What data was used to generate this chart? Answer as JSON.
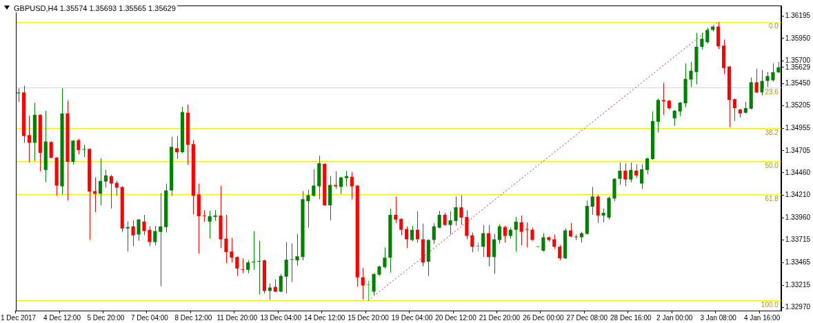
{
  "chart_data": {
    "type": "candlestick",
    "title": "GBPUSD,H4 1.35574 1.35693 1.35565 1.35629",
    "categories": [
      "1 Dec 2017",
      null,
      null,
      null,
      null,
      null,
      null,
      null,
      "4 Dec 12:00",
      null,
      null,
      null,
      null,
      null,
      null,
      null,
      "5 Dec 20:00",
      null,
      null,
      null,
      null,
      null,
      null,
      null,
      "7 Dec 04:00",
      null,
      null,
      null,
      null,
      null,
      null,
      null,
      "8 Dec 12:00",
      null,
      null,
      null,
      null,
      null,
      null,
      null,
      "11 Dec 20:00",
      null,
      null,
      null,
      null,
      null,
      null,
      null,
      "13 Dec 04:00",
      null,
      null,
      null,
      null,
      null,
      null,
      null,
      "14 Dec 12:00",
      null,
      null,
      null,
      null,
      null,
      null,
      null,
      "15 Dec 20:00",
      null,
      null,
      null,
      null,
      null,
      null,
      null,
      "19 Dec 04:00",
      null,
      null,
      null,
      null,
      null,
      null,
      null,
      "20 Dec 12:00",
      null,
      null,
      null,
      null,
      null,
      null,
      null,
      "21 Dec 20:00",
      null,
      null,
      null,
      null,
      null,
      null,
      null,
      "26 Dec 00:00",
      null,
      null,
      null,
      null,
      null,
      null,
      null,
      "27 Dec 08:00",
      null,
      null,
      null,
      null,
      null,
      null,
      null,
      "28 Dec 16:00",
      null,
      null,
      null,
      null,
      null,
      null,
      null,
      "2 Jan 00:00",
      null,
      null,
      null,
      null,
      null,
      null,
      null,
      "3 Jan 08:00",
      null,
      null,
      null,
      null,
      null,
      null,
      null,
      "4 Jan 16:00",
      null,
      null,
      null
    ],
    "ohlc": [
      [
        1.35342,
        1.35396,
        1.35245,
        1.35351
      ],
      [
        1.35351,
        1.35426,
        1.34793,
        1.34869
      ],
      [
        1.34877,
        1.35095,
        1.34575,
        1.34793
      ],
      [
        1.34793,
        1.35238,
        1.3459,
        1.35103
      ],
      [
        1.35103,
        1.35108,
        1.34477,
        1.34681
      ],
      [
        1.34492,
        1.35148,
        1.34356,
        1.34808
      ],
      [
        1.34801,
        1.34808,
        1.34621,
        1.34628
      ],
      [
        1.34628,
        1.34636,
        1.34205,
        1.34319
      ],
      [
        1.34311,
        1.35396,
        1.34221,
        1.35118
      ],
      [
        1.35118,
        1.3526,
        1.34153,
        1.34582
      ],
      [
        1.34582,
        1.34823,
        1.34552,
        1.34816
      ],
      [
        1.34823,
        1.34839,
        1.34666,
        1.34711
      ],
      [
        1.34716,
        1.34771,
        1.34636,
        1.34722
      ],
      [
        1.34726,
        1.3473,
        1.33716,
        1.34251
      ],
      [
        1.34258,
        1.34409,
        1.34025,
        1.34228
      ],
      [
        1.34228,
        1.34621,
        1.341,
        1.34371
      ],
      [
        1.34364,
        1.34492,
        1.34296,
        1.34431
      ],
      [
        1.34424,
        1.34439,
        1.34063,
        1.34341
      ],
      [
        1.34349,
        1.34371,
        1.34205,
        1.34296
      ],
      [
        1.34304,
        1.34311,
        1.33806,
        1.33844
      ],
      [
        1.33844,
        1.33919,
        1.33588,
        1.33859
      ],
      [
        1.33867,
        1.33934,
        1.33648,
        1.33768
      ],
      [
        1.33776,
        1.33949,
        1.33708,
        1.33942
      ],
      [
        1.33919,
        1.33994,
        1.33768,
        1.33814
      ],
      [
        1.33829,
        1.33867,
        1.33648,
        1.33693
      ],
      [
        1.33693,
        1.33874,
        1.33656,
        1.33814
      ],
      [
        1.33806,
        1.34236,
        1.33204,
        1.33867
      ],
      [
        1.33859,
        1.34341,
        1.33799,
        1.34266
      ],
      [
        1.34266,
        1.34861,
        1.34205,
        1.34748
      ],
      [
        1.34733,
        1.34869,
        1.34613,
        1.34688
      ],
      [
        1.34688,
        1.35193,
        1.34681,
        1.35133
      ],
      [
        1.35126,
        1.35216,
        1.34552,
        1.34771
      ],
      [
        1.34778,
        1.34823,
        1.34002,
        1.34205
      ],
      [
        1.34221,
        1.34341,
        1.33565,
        1.33979
      ],
      [
        1.33987,
        1.34047,
        1.33919,
        1.33979
      ],
      [
        1.33919,
        1.3404,
        1.33731,
        1.33979
      ],
      [
        1.33972,
        1.34047,
        1.33927,
        1.33987
      ],
      [
        1.33987,
        1.34319,
        1.33626,
        1.33723
      ],
      [
        1.33731,
        1.33994,
        1.3346,
        1.33581
      ],
      [
        1.33588,
        1.33739,
        1.33467,
        1.3352
      ],
      [
        1.33527,
        1.33535,
        1.33317,
        1.334
      ],
      [
        1.33392,
        1.33513,
        1.33347,
        1.33385
      ],
      [
        1.33385,
        1.3349,
        1.33347,
        1.33467
      ],
      [
        1.33467,
        1.33814,
        1.33385,
        1.33475
      ],
      [
        1.33475,
        1.33708,
        1.33113,
        1.33482
      ],
      [
        1.3349,
        1.33497,
        1.33121,
        1.33151
      ],
      [
        1.33151,
        1.33234,
        1.33053,
        1.33189
      ],
      [
        1.33196,
        1.33279,
        1.33136,
        1.33143
      ],
      [
        1.33143,
        1.33339,
        1.33136,
        1.33317
      ],
      [
        1.33309,
        1.33693,
        1.33121,
        1.33497
      ],
      [
        1.33496,
        1.33678,
        1.33249,
        1.33499
      ],
      [
        1.3349,
        1.33784,
        1.3343,
        1.33535
      ],
      [
        1.33527,
        1.34258,
        1.3349,
        1.34168
      ],
      [
        1.34146,
        1.34273,
        1.33852,
        1.34213
      ],
      [
        1.34205,
        1.345,
        1.34198,
        1.34319
      ],
      [
        1.34311,
        1.34651,
        1.34168,
        1.34567
      ],
      [
        1.3456,
        1.34567,
        1.34093,
        1.341
      ],
      [
        1.341,
        1.34424,
        1.33934,
        1.34326
      ],
      [
        1.34326,
        1.34477,
        1.34281,
        1.34311
      ],
      [
        1.34304,
        1.34416,
        1.34228,
        1.34409
      ],
      [
        1.34401,
        1.34485,
        1.34311,
        1.34424
      ],
      [
        1.34416,
        1.34469,
        1.34168,
        1.34311
      ],
      [
        1.34319,
        1.34326,
        1.33196,
        1.33302
      ],
      [
        1.33302,
        1.33407,
        1.3306,
        1.33211
      ],
      [
        1.33216,
        1.33264,
        1.33045,
        1.33219
      ],
      [
        1.33143,
        1.33347,
        1.33106,
        1.33339
      ],
      [
        1.33332,
        1.3343,
        1.33317,
        1.33422
      ],
      [
        1.33415,
        1.33633,
        1.334,
        1.3352
      ],
      [
        1.3352,
        1.34063,
        1.33355,
        1.33994
      ],
      [
        1.33994,
        1.34198,
        1.33904,
        1.33942
      ],
      [
        1.33949,
        1.33957,
        1.33768,
        1.33829
      ],
      [
        1.33837,
        1.33867,
        1.33626,
        1.33723
      ],
      [
        1.33716,
        1.33874,
        1.33701,
        1.33829
      ],
      [
        1.33829,
        1.34032,
        1.33686,
        1.33723
      ],
      [
        1.33723,
        1.33897,
        1.33422,
        1.33467
      ],
      [
        1.33475,
        1.33723,
        1.33317,
        1.33716
      ],
      [
        1.33716,
        1.33904,
        1.33671,
        1.33867
      ],
      [
        1.33852,
        1.3404,
        1.33844,
        1.33994
      ],
      [
        1.33994,
        1.34017,
        1.33874,
        1.33882
      ],
      [
        1.33882,
        1.34032,
        1.33776,
        1.33934
      ],
      [
        1.33927,
        1.34198,
        1.33874,
        1.34078
      ],
      [
        1.34078,
        1.34213,
        1.33882,
        1.33964
      ],
      [
        1.33972,
        1.34047,
        1.33723,
        1.33761
      ],
      [
        1.33768,
        1.33799,
        1.33581,
        1.33641
      ],
      [
        1.33645,
        1.33686,
        1.33588,
        1.33647
      ],
      [
        1.33641,
        1.33882,
        1.33527,
        1.33791
      ],
      [
        1.33791,
        1.33882,
        1.33422,
        1.33527
      ],
      [
        1.33527,
        1.33784,
        1.33339,
        1.33723
      ],
      [
        1.33716,
        1.33889,
        1.33678,
        1.33867
      ],
      [
        1.33859,
        1.33874,
        1.33686,
        1.33761
      ],
      [
        1.33761,
        1.33852,
        1.33731,
        1.33829
      ],
      [
        1.33829,
        1.33972,
        1.33588,
        1.33919
      ],
      [
        1.33912,
        1.33987,
        1.33656,
        1.33806
      ],
      [
        1.33837,
        1.33912,
        1.33633,
        1.33829
      ],
      [
        1.33829,
        1.33852,
        1.33708,
        1.33716
      ],
      [
        1.33639,
        1.33648,
        1.33633,
        1.33641
      ],
      [
        1.33596,
        1.33791,
        1.33588,
        1.33746
      ],
      [
        1.33746,
        1.33754,
        1.33701,
        1.33716
      ],
      [
        1.33723,
        1.33776,
        1.33618,
        1.33641
      ],
      [
        1.33641,
        1.33663,
        1.3349,
        1.33513
      ],
      [
        1.33513,
        1.33844,
        1.33505,
        1.33822
      ],
      [
        1.33822,
        1.33904,
        1.33746,
        1.33754
      ],
      [
        1.33754,
        1.33776,
        1.33716,
        1.33746
      ],
      [
        1.33746,
        1.33806,
        1.33686,
        1.33791
      ],
      [
        1.33784,
        1.34153,
        1.33776,
        1.34093
      ],
      [
        1.34085,
        1.34304,
        1.33994,
        1.34198
      ],
      [
        1.34198,
        1.34213,
        1.33904,
        1.33987
      ],
      [
        1.33987,
        1.34063,
        1.33912,
        1.34017
      ],
      [
        1.33964,
        1.34198,
        1.33942,
        1.34183
      ],
      [
        1.34175,
        1.34401,
        1.34146,
        1.34394
      ],
      [
        1.34394,
        1.34575,
        1.34326,
        1.34485
      ],
      [
        1.34485,
        1.34567,
        1.34311,
        1.34386
      ],
      [
        1.34386,
        1.34575,
        1.34356,
        1.34492
      ],
      [
        1.34485,
        1.34552,
        1.34401,
        1.34431
      ],
      [
        1.34341,
        1.34552,
        1.34281,
        1.345
      ],
      [
        1.34492,
        1.34628,
        1.34446,
        1.34621
      ],
      [
        1.34613,
        1.35141,
        1.34605,
        1.35035
      ],
      [
        1.35027,
        1.35283,
        1.34907,
        1.35268
      ],
      [
        1.35268,
        1.35456,
        1.35103,
        1.35253
      ],
      [
        1.3526,
        1.35268,
        1.35163,
        1.35178
      ],
      [
        1.35065,
        1.35156,
        1.34982,
        1.35148
      ],
      [
        1.35141,
        1.35246,
        1.35088,
        1.35238
      ],
      [
        1.35231,
        1.35675,
        1.35186,
        1.35502
      ],
      [
        1.35494,
        1.3569,
        1.35411,
        1.35592
      ],
      [
        1.35577,
        1.36014,
        1.35441,
        1.35856
      ],
      [
        1.35856,
        1.36014,
        1.35826,
        1.35946
      ],
      [
        1.35908,
        1.36067,
        1.35893,
        1.36044
      ],
      [
        1.36044,
        1.36089,
        1.36029,
        1.36082
      ],
      [
        1.36082,
        1.36135,
        1.35833,
        1.35863
      ],
      [
        1.35871,
        1.35939,
        1.35555,
        1.35622
      ],
      [
        1.35637,
        1.35645,
        1.34967,
        1.35268
      ],
      [
        1.35276,
        1.35283,
        1.35035,
        1.35178
      ],
      [
        1.35163,
        1.35171,
        1.35073,
        1.35118
      ],
      [
        1.35126,
        1.35246,
        1.35118,
        1.35178
      ],
      [
        1.35171,
        1.35517,
        1.35163,
        1.35464
      ],
      [
        1.35464,
        1.35615,
        1.35344,
        1.35351
      ],
      [
        1.35351,
        1.356,
        1.35321,
        1.35479
      ],
      [
        1.35479,
        1.35577,
        1.35411,
        1.35532
      ],
      [
        1.35487,
        1.35675,
        1.35472,
        1.35577
      ],
      [
        1.35574,
        1.35693,
        1.35565,
        1.35629
      ]
    ],
    "colors": [
      "#008000",
      "#ff0000",
      "#ff0000",
      "#008000",
      "#ff0000",
      "#008000",
      "#ff0000",
      "#ff0000",
      "#008000",
      "#ff0000",
      "#008000",
      "#ff0000",
      "#008000",
      "#ff0000",
      "#ff0000",
      "#008000",
      "#008000",
      "#ff0000",
      "#ff0000",
      "#ff0000",
      "#008000",
      "#ff0000",
      "#008000",
      "#ff0000",
      "#ff0000",
      "#008000",
      "#008000",
      "#008000",
      "#008000",
      "#ff0000",
      "#008000",
      "#ff0000",
      "#ff0000",
      "#ff0000",
      "#ff0000",
      "#008000",
      "#008000",
      "#ff0000",
      "#ff0000",
      "#ff0000",
      "#ff0000",
      "#ff0000",
      "#008000",
      "#008000",
      "#008000",
      "#ff0000",
      "#008000",
      "#ff0000",
      "#008000",
      "#008000",
      "#008000",
      "#008000",
      "#008000",
      "#008000",
      "#008000",
      "#008000",
      "#ff0000",
      "#008000",
      "#ff0000",
      "#008000",
      "#008000",
      "#ff0000",
      "#ff0000",
      "#ff0000",
      "#32cd32",
      "#008000",
      "#008000",
      "#008000",
      "#008000",
      "#ff0000",
      "#ff0000",
      "#ff0000",
      "#008000",
      "#ff0000",
      "#ff0000",
      "#008000",
      "#008000",
      "#008000",
      "#ff0000",
      "#008000",
      "#008000",
      "#ff0000",
      "#ff0000",
      "#ff0000",
      "#32cd32",
      "#008000",
      "#ff0000",
      "#008000",
      "#008000",
      "#ff0000",
      "#008000",
      "#008000",
      "#ff0000",
      "#ff0000",
      "#ff0000",
      "#32cd32",
      "#008000",
      "#ff0000",
      "#ff0000",
      "#ff0000",
      "#008000",
      "#ff0000",
      "#ff0000",
      "#008000",
      "#008000",
      "#008000",
      "#ff0000",
      "#008000",
      "#008000",
      "#008000",
      "#008000",
      "#ff0000",
      "#008000",
      "#ff0000",
      "#008000",
      "#008000",
      "#008000",
      "#008000",
      "#ff0000",
      "#ff0000",
      "#008000",
      "#008000",
      "#008000",
      "#008000",
      "#008000",
      "#008000",
      "#008000",
      "#008000",
      "#ff0000",
      "#ff0000",
      "#ff0000",
      "#ff0000",
      "#ff0000",
      "#008000",
      "#008000",
      "#ff0000",
      "#008000",
      "#008000",
      "#008000",
      "#008000"
    ],
    "ylim": [
      1.32933,
      1.36315
    ],
    "yticks": [
      {
        "value": 1.3297,
        "label": "1.32970"
      },
      1.33215,
      1.33465,
      1.33715,
      {
        "value": 1.3396,
        "label": "1.33960"
      },
      {
        "value": 1.3421,
        "label": "1.34210"
      },
      {
        "value": 1.3446,
        "label": "1.34460"
      },
      1.34705,
      1.34955,
      1.35205,
      {
        "value": 1.3545,
        "label": "1.35450"
      },
      1.35629,
      {
        "value": 1.357,
        "label": "1.35700"
      },
      {
        "value": 1.3595,
        "label": "1.35950"
      },
      1.36195
    ],
    "ref_lines": [
      {
        "axis": "y",
        "value": 1.36135,
        "color": "#f2f200"
      },
      {
        "axis": "y",
        "value": 1.35406,
        "color": "#f2f200"
      },
      {
        "axis": "y",
        "value": 1.34955,
        "color": "#f2f200"
      },
      {
        "axis": "y",
        "value": 1.3459,
        "color": "#f2f200"
      },
      {
        "axis": "y",
        "value": 1.34225,
        "color": "#f2f200"
      },
      {
        "axis": "y",
        "value": 1.33045,
        "color": "#f2f200"
      }
    ],
    "annotations": [
      {
        "text": "0.0",
        "y": 1.36135
      },
      {
        "text": "23.6",
        "y": 1.35406
      },
      {
        "text": "38.2",
        "y": 1.34955
      },
      {
        "text": "50.0",
        "y": 1.3459
      },
      {
        "text": "61.8",
        "y": 1.34225
      },
      {
        "text": "100.0",
        "y": 1.33045
      }
    ],
    "series": [
      {
        "type": "line",
        "x": [
          "15 Dec 20:00",
          "3 Jan 08:00"
        ],
        "values": [
          1.33045,
          1.36135
        ],
        "color": "#b22222",
        "line_style": "dotted",
        "marker": "none"
      }
    ]
  }
}
